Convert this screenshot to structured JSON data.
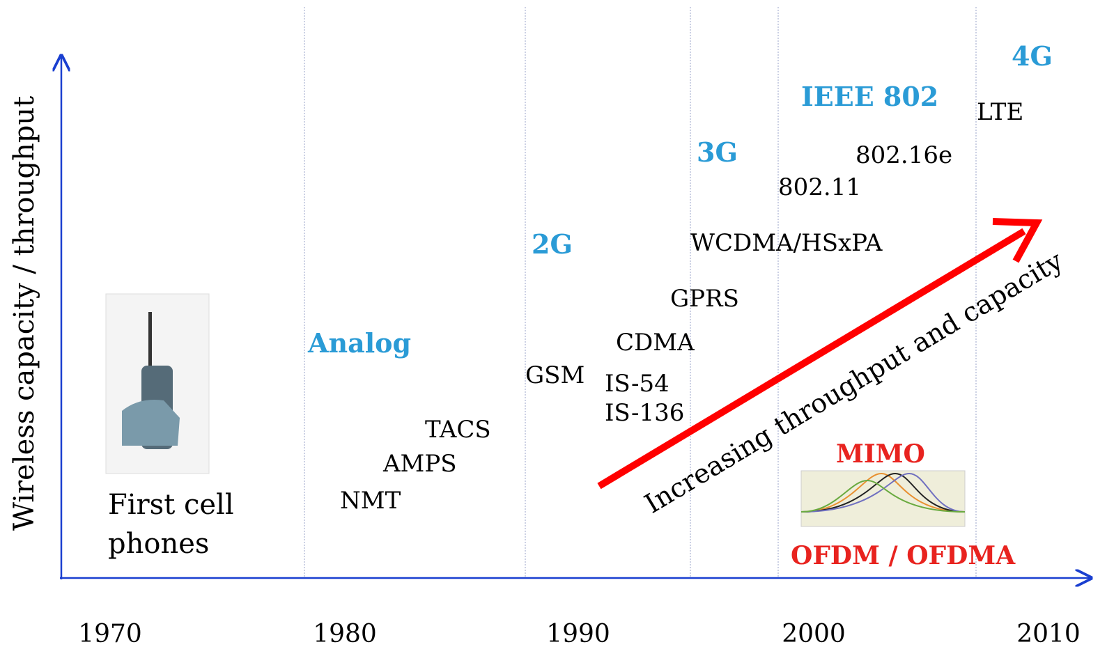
{
  "y_axis_label": "Wireless capacity / throughput",
  "years": [
    "1970",
    "1980",
    "1990",
    "2000",
    "2010"
  ],
  "first_phones": {
    "lines": [
      "First cell",
      "phones"
    ]
  },
  "generations": {
    "analog": "Analog",
    "g2": "2G",
    "g3": "3G",
    "ieee": "IEEE 802",
    "g4": "4G"
  },
  "technologies": {
    "nmt": "NMT",
    "amps": "AMPS",
    "tacs": "TACS",
    "gsm": "GSM",
    "is54": "IS-54",
    "is136": "IS-136",
    "cdma": "CDMA",
    "gprs": "GPRS",
    "wcdma": "WCDMA/HSxPA",
    "wifi": "802.11",
    "wimax": "802.16e",
    "lte": "LTE"
  },
  "trend_label": "Increasing throughput and capacity",
  "mimo": "MIMO",
  "ofdm": "OFDM / OFDMA"
}
